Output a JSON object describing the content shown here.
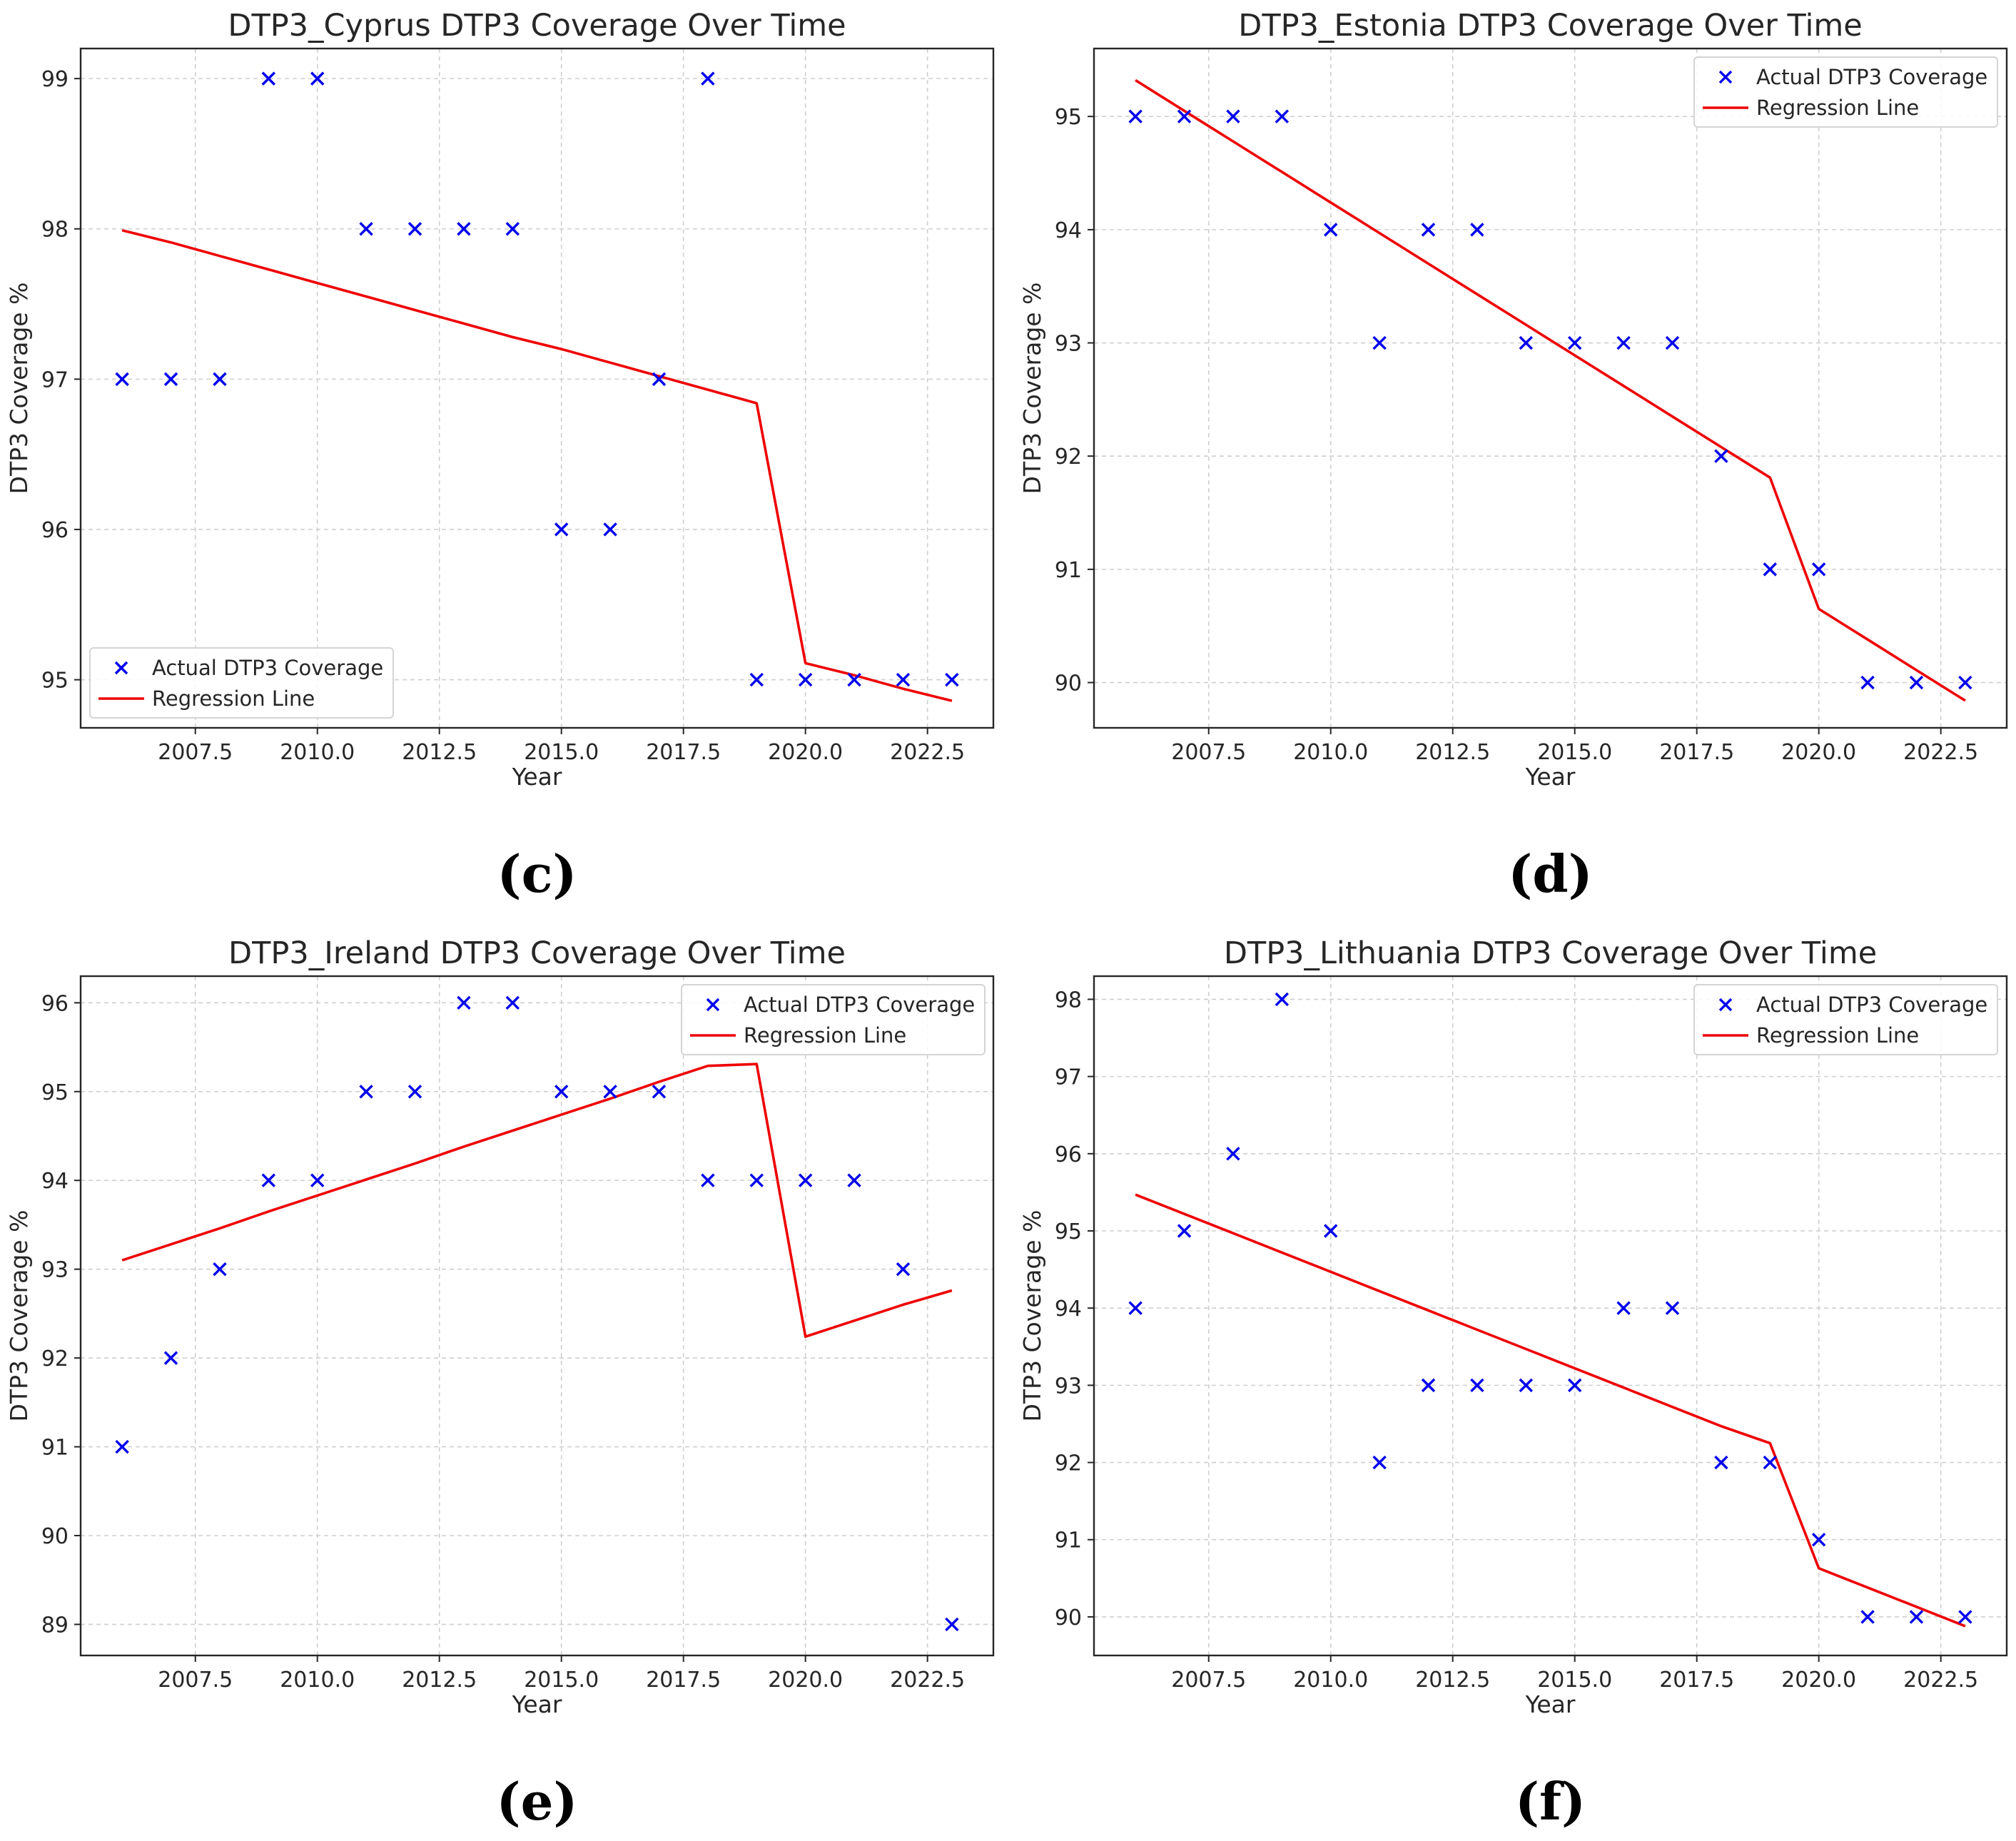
{
  "colors": {
    "actual": "#0000ee",
    "regression": "#ee0000"
  },
  "chart_data": [
    {
      "type": "scatter",
      "panel_label": "(c)",
      "title": "DTP3_Cyprus DTP3 Coverage Over Time",
      "xlabel": "Year",
      "ylabel": "DTP3 Coverage %",
      "x": [
        2006,
        2007,
        2008,
        2009,
        2010,
        2011,
        2012,
        2013,
        2014,
        2015,
        2016,
        2017,
        2018,
        2019,
        2020,
        2021,
        2022,
        2023
      ],
      "series": [
        {
          "name": "Actual DTP3 Coverage",
          "marker": "x",
          "values": [
            97,
            97,
            97,
            99,
            99,
            98,
            98,
            98,
            98,
            96,
            96,
            97,
            99,
            95,
            95,
            95,
            95,
            95
          ]
        },
        {
          "name": "Regression Line",
          "line": true,
          "values": [
            97.99,
            97.91,
            97.82,
            97.73,
            97.64,
            97.55,
            97.46,
            97.37,
            97.28,
            97.2,
            97.11,
            97.02,
            96.93,
            96.84,
            95.11,
            95.03,
            94.94,
            94.86
          ]
        }
      ],
      "xlim": [
        2005.15,
        2023.85
      ],
      "ylim": [
        94.68,
        99.2
      ],
      "xticks": [
        2007.5,
        2010,
        2012.5,
        2015,
        2017.5,
        2020,
        2022.5
      ],
      "xtick_labels": [
        "2007.5",
        "2010.0",
        "2012.5",
        "2015.0",
        "2017.5",
        "2020.0",
        "2022.5"
      ],
      "yticks": [
        95,
        96,
        97,
        98,
        99
      ],
      "ytick_labels": [
        "95",
        "96",
        "97",
        "98",
        "99"
      ],
      "legend": "lower-left",
      "grid": true
    },
    {
      "type": "scatter",
      "panel_label": "(d)",
      "title": "DTP3_Estonia DTP3 Coverage Over Time",
      "xlabel": "Year",
      "ylabel": "DTP3 Coverage %",
      "x": [
        2006,
        2007,
        2008,
        2009,
        2010,
        2011,
        2012,
        2013,
        2014,
        2015,
        2016,
        2017,
        2018,
        2019,
        2020,
        2021,
        2022,
        2023
      ],
      "series": [
        {
          "name": "Actual DTP3 Coverage",
          "marker": "x",
          "values": [
            95,
            95,
            95,
            95,
            94,
            93,
            94,
            94,
            93,
            93,
            93,
            93,
            92,
            91,
            91,
            90,
            90,
            90
          ]
        },
        {
          "name": "Regression Line",
          "line": true,
          "values": [
            95.32,
            95.05,
            94.78,
            94.51,
            94.24,
            93.97,
            93.7,
            93.43,
            93.16,
            92.89,
            92.62,
            92.35,
            92.08,
            91.81,
            90.65,
            90.38,
            90.11,
            89.84
          ]
        }
      ],
      "xlim": [
        2005.15,
        2023.85
      ],
      "ylim": [
        89.6,
        95.6
      ],
      "xticks": [
        2007.5,
        2010,
        2012.5,
        2015,
        2017.5,
        2020,
        2022.5
      ],
      "xtick_labels": [
        "2007.5",
        "2010.0",
        "2012.5",
        "2015.0",
        "2017.5",
        "2020.0",
        "2022.5"
      ],
      "yticks": [
        90,
        91,
        92,
        93,
        94,
        95
      ],
      "ytick_labels": [
        "90",
        "91",
        "92",
        "93",
        "94",
        "95"
      ],
      "legend": "top-right",
      "grid": true
    },
    {
      "type": "scatter",
      "panel_label": "(e)",
      "title": "DTP3_Ireland DTP3 Coverage Over Time",
      "xlabel": "Year",
      "ylabel": "DTP3 Coverage %",
      "x": [
        2006,
        2007,
        2008,
        2009,
        2010,
        2011,
        2012,
        2013,
        2014,
        2015,
        2016,
        2017,
        2018,
        2019,
        2020,
        2021,
        2022,
        2023
      ],
      "series": [
        {
          "name": "Actual DTP3 Coverage",
          "marker": "x",
          "values": [
            91,
            92,
            93,
            94,
            94,
            95,
            95,
            96,
            96,
            95,
            95,
            95,
            94,
            94,
            94,
            94,
            93,
            89
          ]
        },
        {
          "name": "Regression Line",
          "line": true,
          "values": [
            93.1,
            93.28,
            93.46,
            93.65,
            93.83,
            94.01,
            94.19,
            94.38,
            94.56,
            94.74,
            94.92,
            95.11,
            95.29,
            95.31,
            92.24,
            92.42,
            92.6,
            92.76
          ]
        }
      ],
      "xlim": [
        2005.15,
        2023.85
      ],
      "ylim": [
        88.65,
        96.3
      ],
      "xticks": [
        2007.5,
        2010,
        2012.5,
        2015,
        2017.5,
        2020,
        2022.5
      ],
      "xtick_labels": [
        "2007.5",
        "2010.0",
        "2012.5",
        "2015.0",
        "2017.5",
        "2020.0",
        "2022.5"
      ],
      "yticks": [
        89,
        90,
        91,
        92,
        93,
        94,
        95,
        96
      ],
      "ytick_labels": [
        "89",
        "90",
        "91",
        "92",
        "93",
        "94",
        "95",
        "96"
      ],
      "legend": "top-right",
      "grid": true
    },
    {
      "type": "scatter",
      "panel_label": "(f)",
      "title": "DTP3_Lithuania DTP3 Coverage Over Time",
      "xlabel": "Year",
      "ylabel": "DTP3 Coverage %",
      "x": [
        2006,
        2007,
        2008,
        2009,
        2010,
        2011,
        2012,
        2013,
        2014,
        2015,
        2016,
        2017,
        2018,
        2019,
        2020,
        2021,
        2022,
        2023
      ],
      "series": [
        {
          "name": "Actual DTP3 Coverage",
          "marker": "x",
          "values": [
            94,
            95,
            96,
            98,
            95,
            92,
            93,
            93,
            93,
            93,
            94,
            94,
            92,
            92,
            91,
            90,
            90,
            90
          ]
        },
        {
          "name": "Regression Line",
          "line": true,
          "values": [
            95.47,
            95.22,
            94.97,
            94.72,
            94.47,
            94.22,
            93.97,
            93.72,
            93.47,
            93.22,
            92.97,
            92.72,
            92.47,
            92.25,
            90.63,
            90.38,
            90.13,
            89.88
          ]
        }
      ],
      "xlim": [
        2005.15,
        2023.85
      ],
      "ylim": [
        89.5,
        98.3
      ],
      "xticks": [
        2007.5,
        2010,
        2012.5,
        2015,
        2017.5,
        2020,
        2022.5
      ],
      "xtick_labels": [
        "2007.5",
        "2010.0",
        "2012.5",
        "2015.0",
        "2017.5",
        "2020.0",
        "2022.5"
      ],
      "yticks": [
        90,
        91,
        92,
        93,
        94,
        95,
        96,
        97,
        98
      ],
      "ytick_labels": [
        "90",
        "91",
        "92",
        "93",
        "94",
        "95",
        "96",
        "97",
        "98"
      ],
      "legend": "top-right",
      "grid": true
    }
  ]
}
